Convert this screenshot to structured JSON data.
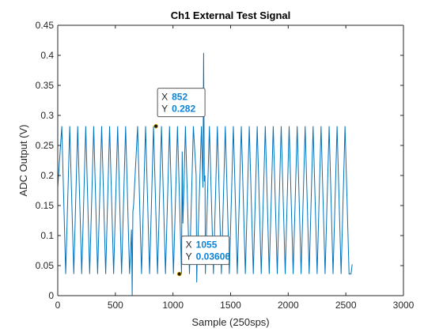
{
  "chart_data": {
    "type": "line",
    "title": "Ch1 External Test Signal",
    "xlabel": "Sample (250sps)",
    "ylabel": "ADC Output (V)",
    "xlim": [
      0,
      3000
    ],
    "ylim": [
      0,
      0.45
    ],
    "xticks": [
      0,
      500,
      1000,
      1500,
      2000,
      2500,
      3000
    ],
    "yticks": [
      0,
      0.05,
      0.1,
      0.15,
      0.2,
      0.25,
      0.3,
      0.35,
      0.4,
      0.45
    ],
    "xtick_labels": [
      "0",
      "500",
      "1000",
      "1500",
      "2000",
      "2500",
      "3000"
    ],
    "ytick_labels": [
      "0",
      "0.05",
      "0.1",
      "0.15",
      "0.2",
      "0.25",
      "0.3",
      "0.35",
      "0.4",
      "0.45"
    ],
    "grid": false,
    "series": [
      {
        "color": "#0072bd",
        "x": [
          0,
          35,
          69,
          104,
          139,
          173,
          208,
          243,
          277,
          312,
          346,
          381,
          416,
          450,
          485,
          520,
          554,
          589,
          623,
          640,
          646,
          652,
          658,
          693,
          727,
          762,
          797,
          831,
          866,
          900,
          935,
          970,
          1004,
          1039,
          1074,
          1080,
          1086,
          1092,
          1108,
          1143,
          1177,
          1201,
          1206,
          1212,
          1218,
          1247,
          1260,
          1266,
          1272,
          1278,
          1281,
          1316,
          1351,
          1385,
          1420,
          1454,
          1489,
          1524,
          1558,
          1593,
          1628,
          1662,
          1697,
          1731,
          1766,
          1801,
          1835,
          1870,
          1905,
          1939,
          1974,
          2008,
          2043,
          2078,
          2112,
          2147,
          2182,
          2216,
          2251,
          2285,
          2320,
          2355,
          2389,
          2424,
          2459,
          2493,
          2528,
          2545,
          2555
        ],
        "y": [
          0.18,
          0.282,
          0.036,
          0.282,
          0.036,
          0.282,
          0.036,
          0.282,
          0.036,
          0.282,
          0.036,
          0.282,
          0.036,
          0.282,
          0.036,
          0.282,
          0.036,
          0.282,
          0.036,
          0.11,
          0.0,
          0.14,
          0.15,
          0.282,
          0.036,
          0.282,
          0.036,
          0.282,
          0.036,
          0.282,
          0.036,
          0.282,
          0.036,
          0.282,
          0.036,
          0.24,
          0.12,
          0.16,
          0.282,
          0.036,
          0.282,
          0.2,
          0.022,
          0.08,
          0.1,
          0.282,
          0.18,
          0.404,
          0.19,
          0.2,
          0.036,
          0.282,
          0.036,
          0.282,
          0.036,
          0.282,
          0.036,
          0.282,
          0.036,
          0.282,
          0.036,
          0.282,
          0.036,
          0.282,
          0.036,
          0.282,
          0.036,
          0.282,
          0.036,
          0.282,
          0.036,
          0.282,
          0.036,
          0.282,
          0.036,
          0.282,
          0.036,
          0.282,
          0.036,
          0.282,
          0.036,
          0.282,
          0.036,
          0.282,
          0.036,
          0.282,
          0.036,
          0.036,
          0.052
        ]
      }
    ],
    "annotations": [
      {
        "x_label": "X",
        "y_label": "Y",
        "x_value": "852",
        "y_value": "0.282",
        "x": 852,
        "y": 0.282
      },
      {
        "x_label": "X",
        "y_label": "Y",
        "x_value": "1055",
        "y_value": "0.03606",
        "x": 1055,
        "y": 0.03606
      }
    ]
  }
}
